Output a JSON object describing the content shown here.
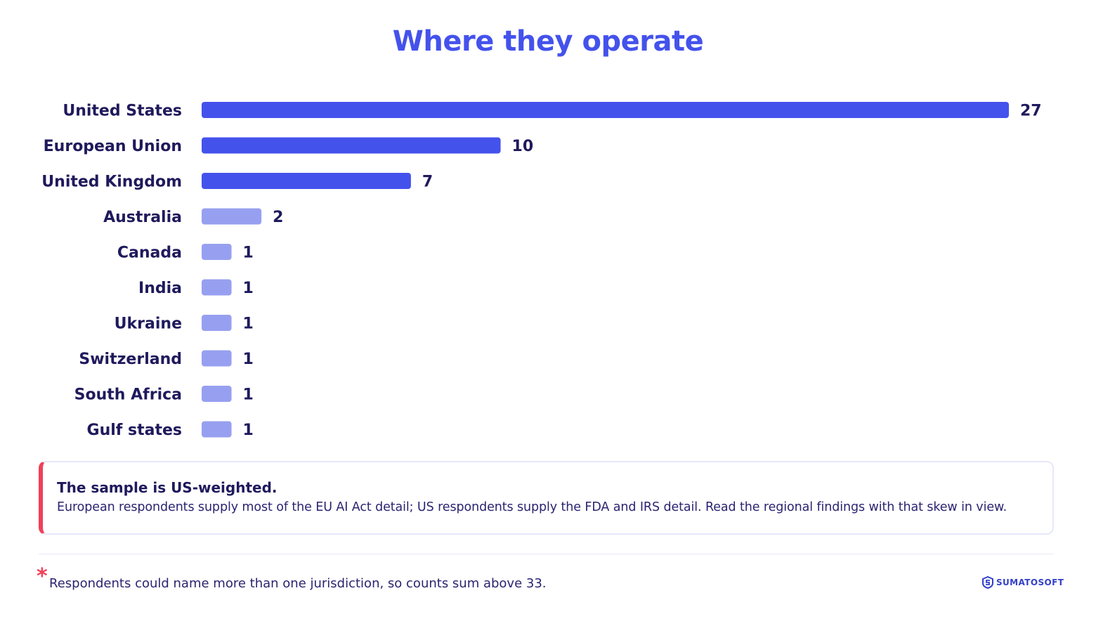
{
  "header": {
    "title": "Where they operate"
  },
  "chart_data": {
    "type": "bar",
    "orientation": "horizontal",
    "categories": [
      "United States",
      "European Union",
      "United Kingdom",
      "Australia",
      "Canada",
      "India",
      "Ukraine",
      "Switzerland",
      "South Africa",
      "Gulf states"
    ],
    "values": [
      27,
      10,
      7,
      2,
      1,
      1,
      1,
      1,
      1,
      1
    ],
    "xlim": [
      0,
      27
    ],
    "grid": false,
    "colors": {
      "primary": "#4452ec",
      "secondary": "#97a0f0"
    },
    "highlight_top_n": 3
  },
  "note": {
    "title": "The sample is US-weighted.",
    "body": "European respondents supply most of the EU AI Act detail; US respondents supply the FDA and IRS detail. Read the regional findings with that skew in view.",
    "accent_color": "#f0405a"
  },
  "footnote": {
    "marker": "*",
    "text": "Respondents could name more than one jurisdiction, so counts sum above 33."
  },
  "brand": {
    "name": "SUMATOSOFT",
    "icon": "sumatosoft-logo-icon"
  }
}
